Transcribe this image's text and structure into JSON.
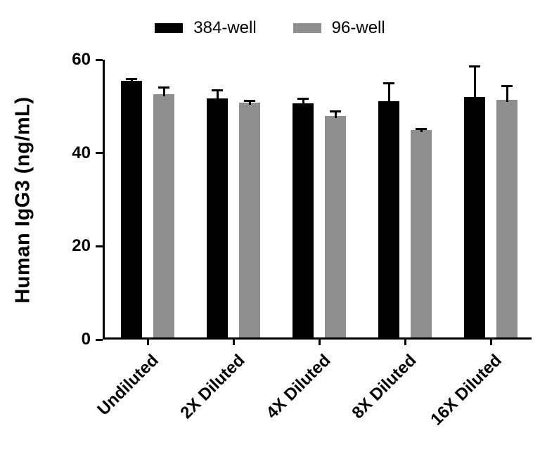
{
  "chart_data": {
    "type": "bar",
    "title": "",
    "categories": [
      "Undiluted",
      "2X Diluted",
      "4X Diluted",
      "8X Diluted",
      "16X Diluted"
    ],
    "series": [
      {
        "name": "384-well",
        "color": "#000000",
        "values": [
          55.0,
          51.2,
          50.2,
          50.7,
          51.6
        ],
        "errors": [
          0.8,
          2.3,
          1.4,
          4.3,
          7.0
        ]
      },
      {
        "name": "96-well",
        "color": "#8f8f8f",
        "values": [
          52.1,
          50.4,
          47.5,
          44.4,
          51.0
        ],
        "errors": [
          1.9,
          0.8,
          1.4,
          0.8,
          3.4
        ]
      }
    ],
    "xlabel": "",
    "ylabel": "Human IgG3 (ng/mL)",
    "ylim": [
      0,
      60
    ],
    "yticks": [
      0,
      20,
      40,
      60
    ],
    "legend_position": "top",
    "grid": false,
    "error_bars": "upper"
  }
}
